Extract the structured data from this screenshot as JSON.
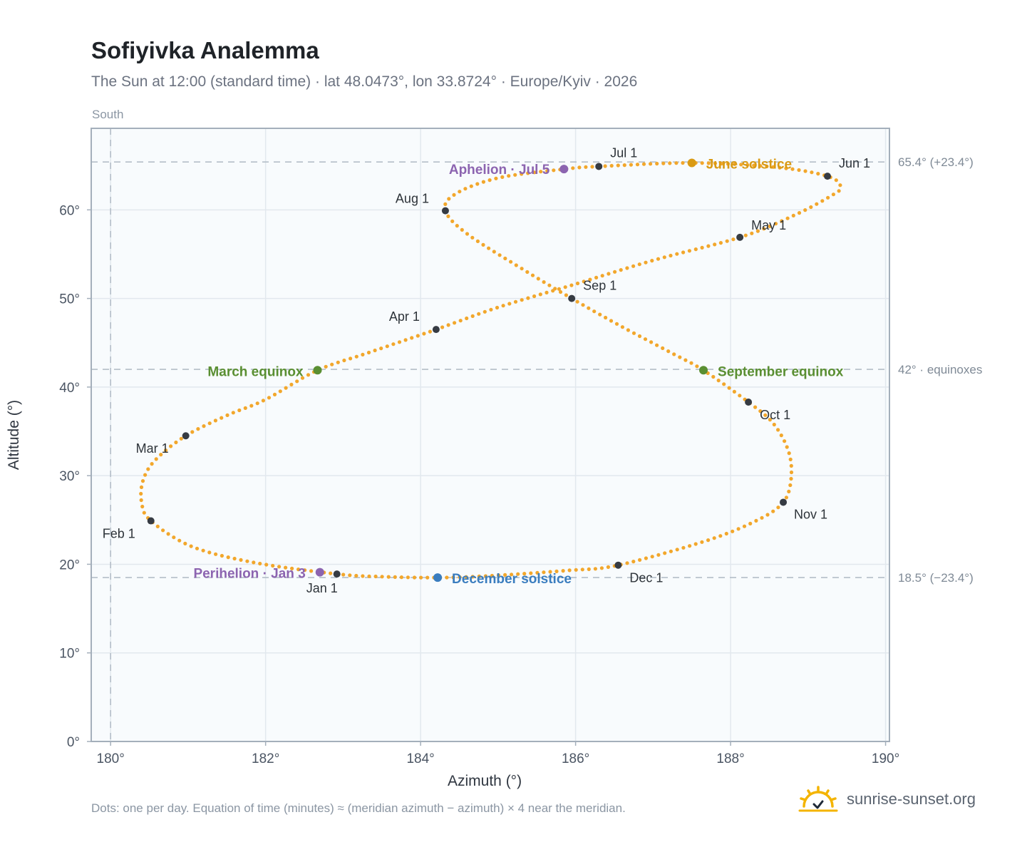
{
  "title": "Sofiyivka Analemma",
  "subtitle": "The Sun at 12:00 (standard time) · lat 48.0473°, lon 33.8724° · Europe/Kyiv · 2026",
  "south_label": "South",
  "footnote": "Dots: one per day. Equation of time (minutes) ≈ (meridian azimuth − azimuth) × 4 near the meridian.",
  "brand": {
    "name": "sunrise-sunset.org",
    "icon": "sun-logo-icon"
  },
  "colors": {
    "curve": "#f2a72c",
    "month_marker": "#363b43",
    "june_solstice": "#d99a14",
    "december_solstice": "#3a7dbf",
    "equinox": "#5a8f32",
    "apsis": "#8c64b0",
    "grid": "#e2e8ee",
    "plot_background": "#f8fbfd",
    "frame": "#a4afbb",
    "reference_line": "#b4bec8"
  },
  "chart_data": {
    "type": "scatter",
    "title": "Sofiyivka Analemma",
    "xlabel": "Azimuth (°)",
    "ylabel": "Altitude (°)",
    "xlim": [
      179.75,
      190.05
    ],
    "ylim": [
      0,
      69.2
    ],
    "grid": true,
    "x_ticks": [
      180,
      182,
      184,
      186,
      188,
      190
    ],
    "y_ticks": [
      0,
      10,
      20,
      30,
      40,
      50,
      60
    ],
    "x_tick_labels": [
      "180°",
      "182°",
      "184°",
      "186°",
      "188°",
      "190°"
    ],
    "y_tick_labels": [
      "0°",
      "10°",
      "20°",
      "30°",
      "40°",
      "50°",
      "60°"
    ],
    "reference_lines": [
      {
        "axis": "y",
        "value": 65.4,
        "label": "65.4° (+23.4°)"
      },
      {
        "axis": "y",
        "value": 42,
        "label": "42° · equinoxes"
      },
      {
        "axis": "y",
        "value": 18.5,
        "label": "18.5° (−23.4°)"
      },
      {
        "axis": "x",
        "value": 180,
        "label": ""
      }
    ],
    "series": [
      {
        "points": [
          [
            182.92,
            18.9
          ],
          [
            181.85,
            20.2
          ],
          [
            181.05,
            22.0
          ],
          [
            180.52,
            24.9
          ],
          [
            180.4,
            27.0
          ],
          [
            180.42,
            29.5
          ],
          [
            180.58,
            31.8
          ],
          [
            180.97,
            34.5
          ],
          [
            181.5,
            36.8
          ],
          [
            182.0,
            38.6
          ],
          [
            182.67,
            41.9
          ],
          [
            183.3,
            43.8
          ],
          [
            184.2,
            46.5
          ],
          [
            185.0,
            49.0
          ],
          [
            185.95,
            51.5
          ],
          [
            187.0,
            54.3
          ],
          [
            188.12,
            56.9
          ],
          [
            188.8,
            59.3
          ],
          [
            189.3,
            61.6
          ],
          [
            189.42,
            62.6
          ],
          [
            189.25,
            63.8
          ],
          [
            188.6,
            64.8
          ],
          [
            187.5,
            65.3
          ],
          [
            186.3,
            64.9
          ],
          [
            185.85,
            64.6
          ],
          [
            185.0,
            63.6
          ],
          [
            184.45,
            61.8
          ],
          [
            184.32,
            59.9
          ],
          [
            184.6,
            57.3
          ],
          [
            185.3,
            53.4
          ],
          [
            185.95,
            50.0
          ],
          [
            186.6,
            46.8
          ],
          [
            187.25,
            43.8
          ],
          [
            187.65,
            41.9
          ],
          [
            188.23,
            38.3
          ],
          [
            188.55,
            35.9
          ],
          [
            188.75,
            32.7
          ],
          [
            188.78,
            29.6
          ],
          [
            188.68,
            27.0
          ],
          [
            188.35,
            25.0
          ],
          [
            187.7,
            22.7
          ],
          [
            186.55,
            19.9
          ],
          [
            185.9,
            19.3
          ],
          [
            184.9,
            18.7
          ],
          [
            184.22,
            18.5
          ],
          [
            183.5,
            18.6
          ],
          [
            182.92,
            18.9
          ]
        ]
      }
    ],
    "month_markers": [
      {
        "label": "Jan 1",
        "x": 182.92,
        "y": 18.9
      },
      {
        "label": "Feb 1",
        "x": 180.52,
        "y": 24.9
      },
      {
        "label": "Mar 1",
        "x": 180.97,
        "y": 34.5
      },
      {
        "label": "Apr 1",
        "x": 184.2,
        "y": 46.5
      },
      {
        "label": "May 1",
        "x": 188.12,
        "y": 56.9
      },
      {
        "label": "Jun 1",
        "x": 189.25,
        "y": 63.8
      },
      {
        "label": "Jul 1",
        "x": 186.3,
        "y": 64.9
      },
      {
        "label": "Aug 1",
        "x": 184.32,
        "y": 59.9
      },
      {
        "label": "Sep 1",
        "x": 185.95,
        "y": 50.0
      },
      {
        "label": "Oct 1",
        "x": 188.23,
        "y": 38.3
      },
      {
        "label": "Nov 1",
        "x": 188.68,
        "y": 27.0
      },
      {
        "label": "Dec 1",
        "x": 186.55,
        "y": 19.9
      }
    ],
    "events": [
      {
        "label": "June solstice",
        "x": 187.5,
        "y": 65.3,
        "color": "#d99a14"
      },
      {
        "label": "Aphelion · Jul 5",
        "x": 185.85,
        "y": 64.6,
        "color": "#8c64b0"
      },
      {
        "label": "March equinox",
        "x": 182.67,
        "y": 41.9,
        "color": "#5a8f32"
      },
      {
        "label": "September equinox",
        "x": 187.65,
        "y": 41.9,
        "color": "#5a8f32"
      },
      {
        "label": "Perihelion · Jan 3",
        "x": 182.7,
        "y": 19.1,
        "color": "#8c64b0"
      },
      {
        "label": "December solstice",
        "x": 184.22,
        "y": 18.5,
        "color": "#3a7dbf"
      }
    ]
  }
}
